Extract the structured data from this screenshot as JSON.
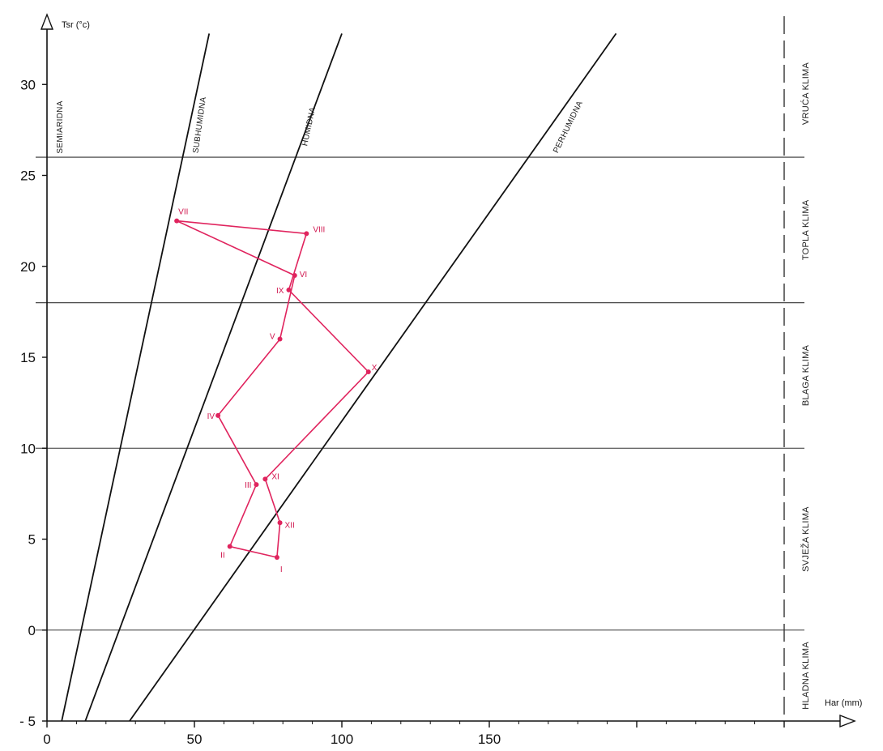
{
  "chart_data": {
    "type": "line",
    "title": "",
    "xlabel": "Har (mm)",
    "ylabel": "Tsr (°c)",
    "xlim": [
      0,
      250
    ],
    "ylim": [
      -5,
      33
    ],
    "x_ticks": [
      0,
      50,
      100,
      150
    ],
    "y_ticks": [
      -5,
      0,
      5,
      10,
      15,
      20,
      25,
      30
    ],
    "grid": false,
    "series_color": "#e0245e",
    "series": [
      {
        "points": [
          {
            "label": "I",
            "x": 78,
            "y": 4.0
          },
          {
            "label": "II",
            "x": 62,
            "y": 4.6
          },
          {
            "label": "III",
            "x": 71,
            "y": 8.0
          },
          {
            "label": "IV",
            "x": 58,
            "y": 11.8
          },
          {
            "label": "V",
            "x": 79,
            "y": 16.0
          },
          {
            "label": "VI",
            "x": 84,
            "y": 19.5
          },
          {
            "label": "VII",
            "x": 44,
            "y": 22.5
          },
          {
            "label": "VIII",
            "x": 88,
            "y": 21.8
          },
          {
            "label": "IX",
            "x": 82,
            "y": 18.7
          },
          {
            "label": "X",
            "x": 109,
            "y": 14.2
          },
          {
            "label": "XI",
            "x": 74,
            "y": 8.3
          },
          {
            "label": "XII",
            "x": 79,
            "y": 5.9
          }
        ],
        "path_order": [
          "I",
          "II",
          "III",
          "IV",
          "V",
          "VI",
          "VII",
          "VIII",
          "IX",
          "X",
          "XI",
          "XII",
          "I"
        ]
      }
    ],
    "boundary_lines": [
      {
        "name": "SUBHUMIDNA",
        "from": [
          5,
          -5
        ],
        "to": [
          55,
          32.8
        ]
      },
      {
        "name": "HUMIDNA",
        "from": [
          13,
          -5
        ],
        "to": [
          100,
          32.8
        ]
      },
      {
        "name": "PERHUMIDNA",
        "from": [
          28,
          -5
        ],
        "to": [
          193,
          32.8
        ]
      }
    ],
    "zone_labels": [
      {
        "text": "SEMIARIDNA",
        "x": 3,
        "y": 26.2
      },
      {
        "text": "SUBHUMIDNA",
        "x": 49,
        "y": 26.2
      },
      {
        "text": "HUMIDNA",
        "x": 86,
        "y": 26.6
      },
      {
        "text": "PERHUMIDNA",
        "x": 171,
        "y": 26.2
      }
    ],
    "temperature_lines": [
      26,
      18,
      10,
      0
    ],
    "climate_boundary_x": 250,
    "climate_labels": [
      {
        "text": "VRUĆA KLIMA",
        "y": 29.5
      },
      {
        "text": "TOPLA KLIMA",
        "y": 22.0
      },
      {
        "text": "BLAGA KLIMA",
        "y": 14.0
      },
      {
        "text": "SVJEŽA KLIMA",
        "y": 5.0
      },
      {
        "text": "HLADNA KLIMA",
        "y": -2.5
      }
    ]
  }
}
